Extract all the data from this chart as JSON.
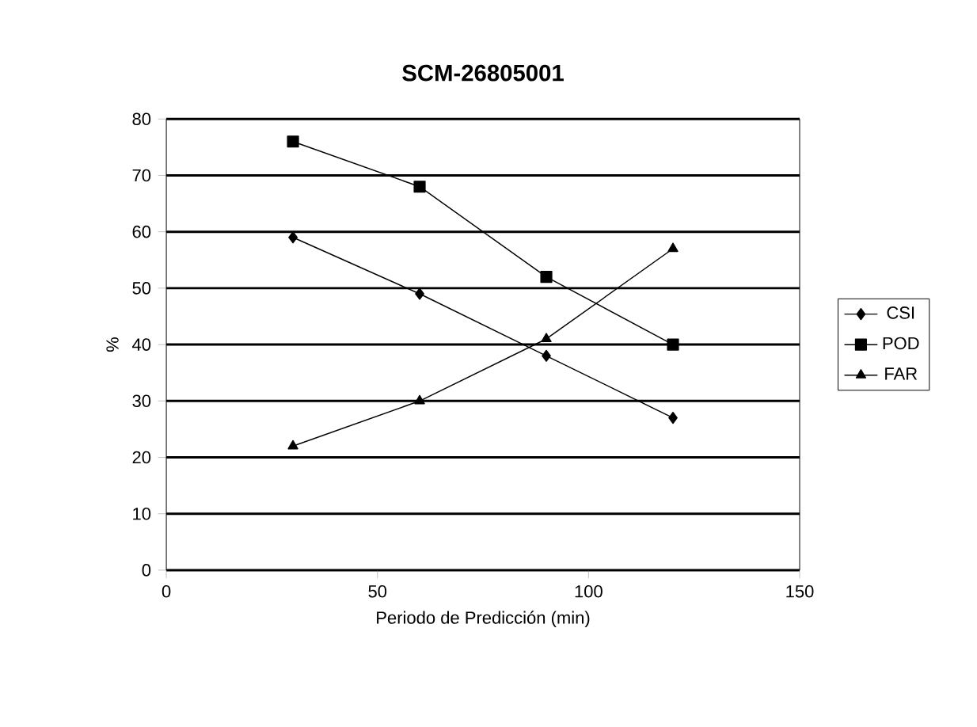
{
  "chart_data": {
    "type": "line",
    "title": "SCM-26805001",
    "xlabel": "Periodo de Predicción (min)",
    "ylabel": "%",
    "x": [
      30,
      60,
      90,
      120
    ],
    "series": [
      {
        "name": "CSI",
        "color": "#000000",
        "marker": "diamond",
        "values": [
          59,
          49,
          38,
          27
        ]
      },
      {
        "name": "POD",
        "color": "#000000",
        "marker": "square",
        "values": [
          76,
          68,
          52,
          40
        ]
      },
      {
        "name": "FAR",
        "color": "#000000",
        "marker": "triangle",
        "values": [
          22,
          30,
          41,
          57
        ]
      }
    ],
    "xlim": [
      0,
      150
    ],
    "xticks": [
      0,
      50,
      100,
      150
    ],
    "ylim": [
      0,
      80
    ],
    "yticks": [
      0,
      10,
      20,
      30,
      40,
      50,
      60,
      70,
      80
    ],
    "grid": "y",
    "legend": "right"
  }
}
